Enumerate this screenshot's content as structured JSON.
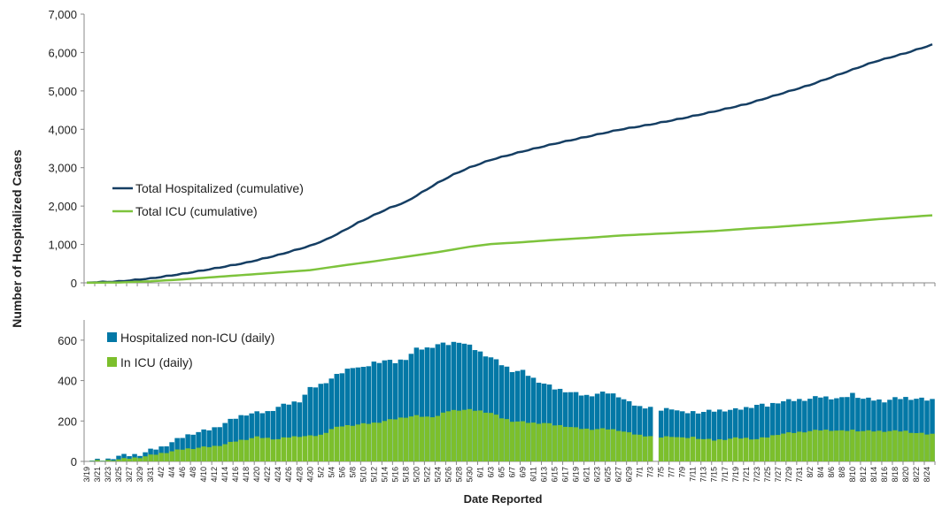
{
  "chart_data": [
    {
      "type": "line",
      "ylabel": "Number of Hospitalized Cases",
      "ylim": [
        0,
        7000
      ],
      "yticks": [
        "0",
        "1,000",
        "2,000",
        "3,000",
        "4,000",
        "5,000",
        "6,000",
        "7,000"
      ],
      "grid": false,
      "legend_position": "left-middle",
      "x_start": "3/19",
      "x_end": "8/25",
      "series": [
        {
          "name": "Total Hospitalized (cumulative)",
          "color": "#153E63",
          "points": [
            [
              "3/19",
              5
            ],
            [
              "3/25",
              30
            ],
            [
              "3/31",
              110
            ],
            [
              "4/6",
              230
            ],
            [
              "4/12",
              370
            ],
            [
              "4/18",
              520
            ],
            [
              "4/24",
              720
            ],
            [
              "4/30",
              960
            ],
            [
              "5/3",
              1120
            ],
            [
              "5/6",
              1330
            ],
            [
              "5/9",
              1560
            ],
            [
              "5/12",
              1760
            ],
            [
              "5/15",
              1950
            ],
            [
              "5/18",
              2100
            ],
            [
              "5/21",
              2350
            ],
            [
              "5/24",
              2600
            ],
            [
              "5/27",
              2820
            ],
            [
              "5/30",
              3000
            ],
            [
              "6/3",
              3200
            ],
            [
              "6/9",
              3420
            ],
            [
              "6/15",
              3620
            ],
            [
              "6/21",
              3800
            ],
            [
              "6/27",
              3980
            ],
            [
              "7/3",
              4120
            ],
            [
              "7/9",
              4280
            ],
            [
              "7/15",
              4460
            ],
            [
              "7/21",
              4650
            ],
            [
              "7/27",
              4900
            ],
            [
              "8/2",
              5150
            ],
            [
              "8/8",
              5450
            ],
            [
              "8/14",
              5750
            ],
            [
              "8/20",
              5980
            ],
            [
              "8/25",
              6200
            ]
          ]
        },
        {
          "name": "Total ICU (cumulative)",
          "color": "#7DC33C",
          "points": [
            [
              "3/19",
              2
            ],
            [
              "3/25",
              10
            ],
            [
              "3/31",
              40
            ],
            [
              "4/6",
              90
            ],
            [
              "4/12",
              150
            ],
            [
              "4/18",
              210
            ],
            [
              "4/24",
              270
            ],
            [
              "4/30",
              330
            ],
            [
              "5/6",
              450
            ],
            [
              "5/12",
              560
            ],
            [
              "5/18",
              680
            ],
            [
              "5/24",
              800
            ],
            [
              "5/30",
              940
            ],
            [
              "6/3",
              1010
            ],
            [
              "6/9",
              1060
            ],
            [
              "6/15",
              1120
            ],
            [
              "6/21",
              1170
            ],
            [
              "6/27",
              1230
            ],
            [
              "7/3",
              1270
            ],
            [
              "7/9",
              1310
            ],
            [
              "7/15",
              1350
            ],
            [
              "7/21",
              1410
            ],
            [
              "7/27",
              1460
            ],
            [
              "8/2",
              1520
            ],
            [
              "8/8",
              1580
            ],
            [
              "8/14",
              1650
            ],
            [
              "8/20",
              1710
            ],
            [
              "8/25",
              1760
            ]
          ]
        }
      ]
    },
    {
      "type": "bar",
      "stacked": true,
      "xlabel": "Date Reported",
      "ylim": [
        0,
        700
      ],
      "yticks": [
        "0",
        "200",
        "400",
        "600"
      ],
      "grid": false,
      "legend_position": "top-left",
      "date_ticks": [
        "3/19",
        "3/21",
        "3/23",
        "3/25",
        "3/27",
        "3/29",
        "3/31",
        "4/2",
        "4/4",
        "4/6",
        "4/8",
        "4/10",
        "4/12",
        "4/14",
        "4/16",
        "4/18",
        "4/20",
        "4/22",
        "4/24",
        "4/26",
        "4/28",
        "4/30",
        "5/2",
        "5/4",
        "5/6",
        "5/8",
        "5/10",
        "5/12",
        "5/14",
        "5/16",
        "5/18",
        "5/20",
        "5/22",
        "5/24",
        "5/26",
        "5/28",
        "5/30",
        "6/1",
        "6/3",
        "6/5",
        "6/7",
        "6/9",
        "6/11",
        "6/13",
        "6/15",
        "6/17",
        "6/19",
        "6/21",
        "6/23",
        "6/25",
        "6/27",
        "6/29",
        "7/1",
        "7/3",
        "7/5",
        "7/7",
        "7/9",
        "7/11",
        "7/13",
        "7/15",
        "7/17",
        "7/19",
        "7/21",
        "7/23",
        "7/25",
        "7/27",
        "7/29",
        "7/31",
        "8/2",
        "8/4",
        "8/6",
        "8/8",
        "8/10",
        "8/12",
        "8/14",
        "8/16",
        "8/18",
        "8/20",
        "8/22",
        "8/24"
      ],
      "missing_date": "7/4",
      "series": [
        {
          "name": "Hospitalized non-ICU (daily)",
          "color": "#0378A6",
          "role": "total_height",
          "points": [
            [
              "3/19",
              3
            ],
            [
              "3/21",
              5
            ],
            [
              "3/23",
              10
            ],
            [
              "3/25",
              28
            ],
            [
              "3/27",
              30
            ],
            [
              "3/29",
              35
            ],
            [
              "3/31",
              55
            ],
            [
              "4/2",
              70
            ],
            [
              "4/4",
              95
            ],
            [
              "4/6",
              120
            ],
            [
              "4/8",
              140
            ],
            [
              "4/10",
              150
            ],
            [
              "4/12",
              165
            ],
            [
              "4/14",
              190
            ],
            [
              "4/16",
              215
            ],
            [
              "4/18",
              235
            ],
            [
              "4/20",
              240
            ],
            [
              "4/22",
              245
            ],
            [
              "4/24",
              270
            ],
            [
              "4/26",
              285
            ],
            [
              "4/28",
              300
            ],
            [
              "4/30",
              360
            ],
            [
              "5/2",
              380
            ],
            [
              "5/4",
              410
            ],
            [
              "5/6",
              440
            ],
            [
              "5/8",
              470
            ],
            [
              "5/10",
              460
            ],
            [
              "5/12",
              490
            ],
            [
              "5/14",
              500
            ],
            [
              "5/16",
              490
            ],
            [
              "5/18",
              510
            ],
            [
              "5/20",
              555
            ],
            [
              "5/22",
              560
            ],
            [
              "5/24",
              580
            ],
            [
              "5/26",
              580
            ],
            [
              "5/28",
              595
            ],
            [
              "5/30",
              570
            ],
            [
              "6/1",
              540
            ],
            [
              "6/3",
              515
            ],
            [
              "6/5",
              480
            ],
            [
              "6/7",
              450
            ],
            [
              "6/9",
              445
            ],
            [
              "6/11",
              410
            ],
            [
              "6/13",
              385
            ],
            [
              "6/15",
              360
            ],
            [
              "6/17",
              350
            ],
            [
              "6/19",
              335
            ],
            [
              "6/21",
              325
            ],
            [
              "6/23",
              335
            ],
            [
              "6/25",
              340
            ],
            [
              "6/27",
              325
            ],
            [
              "6/29",
              290
            ],
            [
              "7/1",
              270
            ],
            [
              "7/3",
              270
            ],
            [
              "7/5",
              255
            ],
            [
              "7/7",
              265
            ],
            [
              "7/9",
              240
            ],
            [
              "7/11",
              245
            ],
            [
              "7/13",
              245
            ],
            [
              "7/15",
              250
            ],
            [
              "7/17",
              255
            ],
            [
              "7/19",
              255
            ],
            [
              "7/21",
              265
            ],
            [
              "7/23",
              280
            ],
            [
              "7/25",
              275
            ],
            [
              "7/27",
              295
            ],
            [
              "7/29",
              300
            ],
            [
              "7/31",
              305
            ],
            [
              "8/2",
              310
            ],
            [
              "8/4",
              320
            ],
            [
              "8/6",
              315
            ],
            [
              "8/8",
              310
            ],
            [
              "8/10",
              335
            ],
            [
              "8/12",
              310
            ],
            [
              "8/14",
              305
            ],
            [
              "8/16",
              300
            ],
            [
              "8/18",
              310
            ],
            [
              "8/20",
              315
            ],
            [
              "8/22",
              310
            ],
            [
              "8/24",
              305
            ]
          ]
        },
        {
          "name": "In ICU (daily)",
          "color": "#7CBF2C",
          "points": [
            [
              "3/19",
              1
            ],
            [
              "3/21",
              3
            ],
            [
              "3/23",
              5
            ],
            [
              "3/25",
              10
            ],
            [
              "3/27",
              15
            ],
            [
              "3/29",
              20
            ],
            [
              "3/31",
              30
            ],
            [
              "4/2",
              40
            ],
            [
              "4/4",
              50
            ],
            [
              "4/6",
              60
            ],
            [
              "4/8",
              65
            ],
            [
              "4/10",
              70
            ],
            [
              "4/12",
              75
            ],
            [
              "4/14",
              85
            ],
            [
              "4/16",
              100
            ],
            [
              "4/18",
              110
            ],
            [
              "4/20",
              120
            ],
            [
              "4/22",
              115
            ],
            [
              "4/24",
              110
            ],
            [
              "4/26",
              120
            ],
            [
              "4/28",
              125
            ],
            [
              "4/30",
              125
            ],
            [
              "5/2",
              130
            ],
            [
              "5/4",
              160
            ],
            [
              "5/6",
              175
            ],
            [
              "5/8",
              180
            ],
            [
              "5/10",
              185
            ],
            [
              "5/12",
              190
            ],
            [
              "5/14",
              200
            ],
            [
              "5/16",
              210
            ],
            [
              "5/18",
              220
            ],
            [
              "5/20",
              225
            ],
            [
              "5/22",
              220
            ],
            [
              "5/24",
              225
            ],
            [
              "5/26",
              250
            ],
            [
              "5/28",
              255
            ],
            [
              "5/30",
              255
            ],
            [
              "6/1",
              250
            ],
            [
              "6/3",
              240
            ],
            [
              "6/5",
              215
            ],
            [
              "6/7",
              200
            ],
            [
              "6/9",
              195
            ],
            [
              "6/11",
              190
            ],
            [
              "6/13",
              190
            ],
            [
              "6/15",
              180
            ],
            [
              "6/17",
              175
            ],
            [
              "6/19",
              165
            ],
            [
              "6/21",
              160
            ],
            [
              "6/23",
              160
            ],
            [
              "6/25",
              160
            ],
            [
              "6/27",
              155
            ],
            [
              "6/29",
              140
            ],
            [
              "7/1",
              130
            ],
            [
              "7/3",
              125
            ],
            [
              "7/5",
              120
            ],
            [
              "7/7",
              125
            ],
            [
              "7/9",
              115
            ],
            [
              "7/11",
              120
            ],
            [
              "7/13",
              110
            ],
            [
              "7/15",
              105
            ],
            [
              "7/17",
              110
            ],
            [
              "7/19",
              115
            ],
            [
              "7/21",
              115
            ],
            [
              "7/23",
              110
            ],
            [
              "7/25",
              120
            ],
            [
              "7/27",
              135
            ],
            [
              "7/29",
              140
            ],
            [
              "7/31",
              145
            ],
            [
              "8/2",
              150
            ],
            [
              "8/4",
              155
            ],
            [
              "8/6",
              155
            ],
            [
              "8/8",
              150
            ],
            [
              "8/10",
              155
            ],
            [
              "8/12",
              150
            ],
            [
              "8/14",
              150
            ],
            [
              "8/16",
              150
            ],
            [
              "8/18",
              150
            ],
            [
              "8/20",
              150
            ],
            [
              "8/22",
              140
            ],
            [
              "8/24",
              135
            ]
          ]
        }
      ]
    }
  ]
}
